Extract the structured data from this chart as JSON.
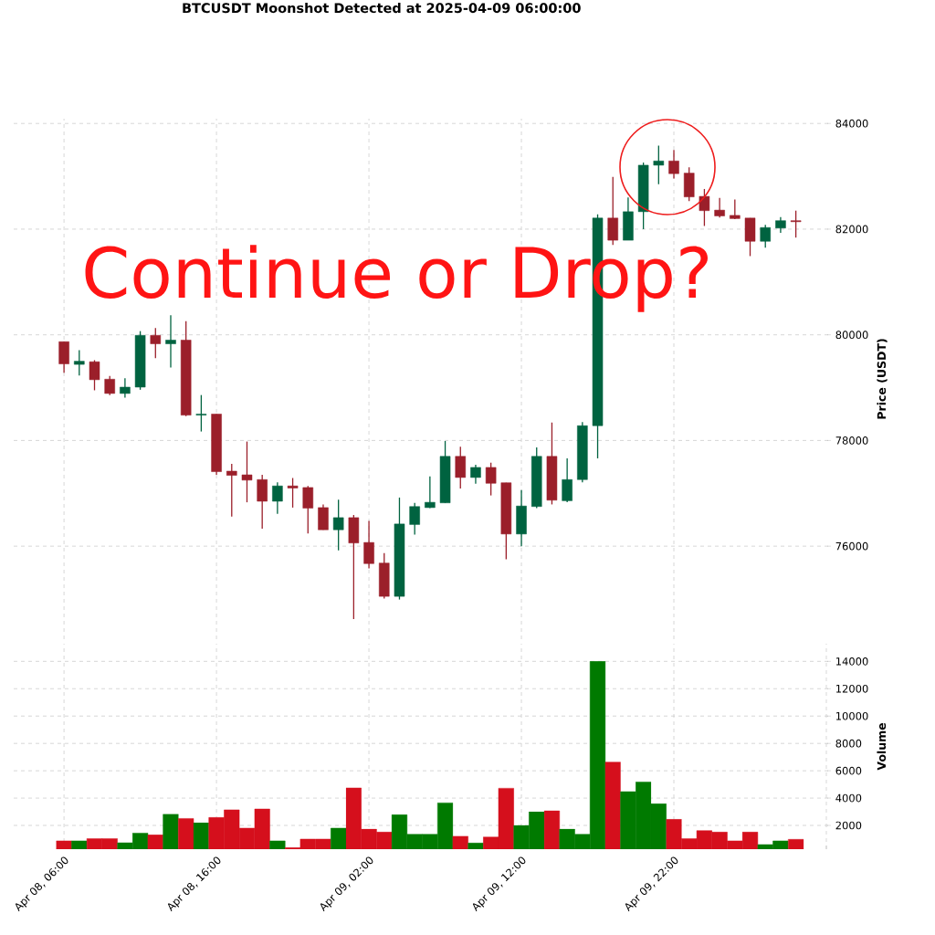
{
  "chart_data": [
    {
      "type": "candlestick",
      "title": "BTCUSDT Moonshot Detected at 2025-04-09 06:00:00",
      "ylabel": "Price (USDT)",
      "x": [
        "2025-04-08T06:00",
        "2025-04-08T07:00",
        "2025-04-08T08:00",
        "2025-04-08T09:00",
        "2025-04-08T10:00",
        "2025-04-08T11:00",
        "2025-04-08T12:00",
        "2025-04-08T13:00",
        "2025-04-08T14:00",
        "2025-04-08T15:00",
        "2025-04-08T16:00",
        "2025-04-08T17:00",
        "2025-04-08T18:00",
        "2025-04-08T19:00",
        "2025-04-08T20:00",
        "2025-04-08T21:00",
        "2025-04-08T22:00",
        "2025-04-08T23:00",
        "2025-04-09T00:00",
        "2025-04-09T01:00",
        "2025-04-09T02:00",
        "2025-04-09T03:00",
        "2025-04-09T04:00",
        "2025-04-09T05:00",
        "2025-04-09T06:00",
        "2025-04-09T07:00",
        "2025-04-09T08:00",
        "2025-04-09T09:00",
        "2025-04-09T10:00",
        "2025-04-09T11:00",
        "2025-04-09T12:00",
        "2025-04-09T13:00",
        "2025-04-09T14:00",
        "2025-04-09T15:00",
        "2025-04-09T16:00",
        "2025-04-09T17:00",
        "2025-04-09T18:00",
        "2025-04-09T19:00",
        "2025-04-09T20:00",
        "2025-04-09T21:00",
        "2025-04-09T22:00",
        "2025-04-09T23:00",
        "2025-04-10T00:00",
        "2025-04-10T01:00",
        "2025-04-10T02:00",
        "2025-04-10T03:00",
        "2025-04-10T04:00",
        "2025-04-10T05:00",
        "2025-04-10T06:00"
      ],
      "ohlc": [
        [
          79870,
          79870,
          79280,
          79450
        ],
        [
          79440,
          79710,
          79230,
          79500
        ],
        [
          79490,
          79520,
          78950,
          79150
        ],
        [
          79160,
          79220,
          78860,
          78890
        ],
        [
          78890,
          79180,
          78810,
          79010
        ],
        [
          79010,
          80070,
          78960,
          79990
        ],
        [
          79990,
          80130,
          79560,
          79830
        ],
        [
          79830,
          80370,
          79380,
          79900
        ],
        [
          79900,
          80260,
          78460,
          78480
        ],
        [
          78480,
          78860,
          78170,
          78500
        ],
        [
          78500,
          78500,
          77350,
          77410
        ],
        [
          77420,
          77560,
          76560,
          77340
        ],
        [
          77350,
          77980,
          76830,
          77250
        ],
        [
          77260,
          77350,
          76330,
          76850
        ],
        [
          76850,
          77210,
          76610,
          77140
        ],
        [
          77140,
          77290,
          76730,
          77100
        ],
        [
          77110,
          77140,
          76240,
          76720
        ],
        [
          76730,
          76790,
          76310,
          76310
        ],
        [
          76310,
          76880,
          75920,
          76540
        ],
        [
          76540,
          76590,
          74620,
          76060
        ],
        [
          76070,
          76480,
          75580,
          75670
        ],
        [
          75680,
          75870,
          75010,
          75050
        ],
        [
          75050,
          76920,
          74990,
          76420
        ],
        [
          76410,
          76820,
          76220,
          76750
        ],
        [
          76730,
          77320,
          76720,
          76830
        ],
        [
          76820,
          77990,
          76820,
          77700
        ],
        [
          77700,
          77880,
          77090,
          77300
        ],
        [
          77300,
          77540,
          77180,
          77490
        ],
        [
          77490,
          77580,
          76960,
          77190
        ],
        [
          77200,
          77200,
          75750,
          76230
        ],
        [
          76230,
          77060,
          76000,
          76760
        ],
        [
          76750,
          77870,
          76720,
          77700
        ],
        [
          77700,
          78340,
          76790,
          76870
        ],
        [
          76860,
          77660,
          76830,
          77260
        ],
        [
          77260,
          78350,
          77210,
          78280
        ],
        [
          78280,
          82280,
          77660,
          82210
        ],
        [
          82210,
          82990,
          81700,
          81790
        ],
        [
          81790,
          82600,
          81790,
          82330
        ],
        [
          82330,
          83260,
          82000,
          83210
        ],
        [
          83210,
          83580,
          82850,
          83290
        ],
        [
          83290,
          83500,
          82960,
          83050
        ],
        [
          83060,
          83170,
          82530,
          82610
        ],
        [
          82620,
          82760,
          82060,
          82350
        ],
        [
          82360,
          82590,
          82220,
          82250
        ],
        [
          82260,
          82560,
          82190,
          82200
        ],
        [
          82210,
          82210,
          81490,
          81770
        ],
        [
          81770,
          82080,
          81650,
          82030
        ],
        [
          82020,
          82230,
          81930,
          82160
        ],
        [
          82160,
          82350,
          81840,
          82140
        ]
      ],
      "colors": [
        "#9b1f2a",
        "#006340",
        "#9b1f2a",
        "#9b1f2a",
        "#006340",
        "#006340",
        "#9b1f2a",
        "#006340",
        "#9b1f2a",
        "#006340",
        "#9b1f2a",
        "#9b1f2a",
        "#9b1f2a",
        "#9b1f2a",
        "#006340",
        "#9b1f2a",
        "#9b1f2a",
        "#9b1f2a",
        "#006340",
        "#9b1f2a",
        "#9b1f2a",
        "#9b1f2a",
        "#006340",
        "#006340",
        "#006340",
        "#006340",
        "#9b1f2a",
        "#006340",
        "#9b1f2a",
        "#9b1f2a",
        "#006340",
        "#006340",
        "#9b1f2a",
        "#006340",
        "#006340",
        "#006340",
        "#9b1f2a",
        "#006340",
        "#006340",
        "#006340",
        "#9b1f2a",
        "#9b1f2a",
        "#9b1f2a",
        "#9b1f2a",
        "#9b1f2a",
        "#9b1f2a",
        "#006340",
        "#006340",
        "#9b1f2a"
      ],
      "xlim": [
        "2025-04-08T02:42",
        "2025-04-10T08:18"
      ],
      "xticks": [
        {
          "value": "2025-04-08T06:00",
          "label": null
        },
        {
          "value": "2025-04-08T16:00",
          "label": null
        },
        {
          "value": "2025-04-09T02:00",
          "label": null
        },
        {
          "value": "2025-04-09T12:00",
          "label": null
        },
        {
          "value": "2025-04-09T22:00",
          "label": null
        }
      ],
      "ylim": [
        74240,
        84090
      ],
      "yticks": [
        76000,
        78000,
        80000,
        82000,
        84000
      ],
      "grid": true,
      "tick_labels": "y",
      "annotations": [
        "Continue or Drop?"
      ]
    },
    {
      "type": "bar",
      "ylabel": "Volume",
      "x": [
        "2025-04-08T06:00",
        "2025-04-08T07:00",
        "2025-04-08T08:00",
        "2025-04-08T09:00",
        "2025-04-08T10:00",
        "2025-04-08T11:00",
        "2025-04-08T12:00",
        "2025-04-08T13:00",
        "2025-04-08T14:00",
        "2025-04-08T15:00",
        "2025-04-08T16:00",
        "2025-04-08T17:00",
        "2025-04-08T18:00",
        "2025-04-08T19:00",
        "2025-04-08T20:00",
        "2025-04-08T21:00",
        "2025-04-08T22:00",
        "2025-04-08T23:00",
        "2025-04-09T00:00",
        "2025-04-09T01:00",
        "2025-04-09T02:00",
        "2025-04-09T03:00",
        "2025-04-09T04:00",
        "2025-04-09T05:00",
        "2025-04-09T06:00",
        "2025-04-09T07:00",
        "2025-04-09T08:00",
        "2025-04-09T09:00",
        "2025-04-09T10:00",
        "2025-04-09T11:00",
        "2025-04-09T12:00",
        "2025-04-09T13:00",
        "2025-04-09T14:00",
        "2025-04-09T15:00",
        "2025-04-09T16:00",
        "2025-04-09T17:00",
        "2025-04-09T18:00",
        "2025-04-09T19:00",
        "2025-04-09T20:00",
        "2025-04-09T21:00",
        "2025-04-09T22:00",
        "2025-04-09T23:00",
        "2025-04-10T00:00",
        "2025-04-10T01:00",
        "2025-04-10T02:00",
        "2025-04-10T03:00",
        "2025-04-10T04:00",
        "2025-04-10T05:00",
        "2025-04-10T06:00"
      ],
      "values": [
        870,
        870,
        1040,
        1040,
        730,
        1440,
        1310,
        2820,
        2510,
        2200,
        2580,
        3140,
        1800,
        3200,
        870,
        380,
        1000,
        1000,
        1800,
        4740,
        1730,
        1510,
        2780,
        1350,
        1350,
        3650,
        1220,
        710,
        1150,
        4720,
        2000,
        3000,
        3070,
        1730,
        1350,
        14000,
        6630,
        4470,
        5180,
        3580,
        2450,
        1040,
        1620,
        1510,
        870,
        1510,
        600,
        870,
        980
      ],
      "colors": [
        "#d50f1c",
        "#007a00",
        "#d50f1c",
        "#d50f1c",
        "#007a00",
        "#007a00",
        "#d50f1c",
        "#007a00",
        "#d50f1c",
        "#007a00",
        "#d50f1c",
        "#d50f1c",
        "#d50f1c",
        "#d50f1c",
        "#007a00",
        "#d50f1c",
        "#d50f1c",
        "#d50f1c",
        "#007a00",
        "#d50f1c",
        "#d50f1c",
        "#d50f1c",
        "#007a00",
        "#007a00",
        "#007a00",
        "#007a00",
        "#d50f1c",
        "#007a00",
        "#d50f1c",
        "#d50f1c",
        "#007a00",
        "#007a00",
        "#d50f1c",
        "#007a00",
        "#007a00",
        "#007a00",
        "#d50f1c",
        "#007a00",
        "#007a00",
        "#007a00",
        "#d50f1c",
        "#d50f1c",
        "#d50f1c",
        "#d50f1c",
        "#d50f1c",
        "#d50f1c",
        "#007a00",
        "#007a00",
        "#d50f1c"
      ],
      "xlim": [
        "2025-04-08T02:42",
        "2025-04-10T08:18"
      ],
      "xticks": [
        {
          "value": "2025-04-08T06:00",
          "label": "Apr 08, 06:00"
        },
        {
          "value": "2025-04-08T16:00",
          "label": "Apr 08, 16:00"
        },
        {
          "value": "2025-04-09T02:00",
          "label": "Apr 09, 02:00"
        },
        {
          "value": "2025-04-09T12:00",
          "label": "Apr 09, 12:00"
        },
        {
          "value": "2025-04-09T22:00",
          "label": "Apr 09, 22:00"
        },
        {
          "value": "2025-04-10T08:00",
          "label": null
        }
      ],
      "ylim": [
        264,
        15290
      ],
      "yticks": [
        2000,
        4000,
        6000,
        8000,
        10000,
        12000,
        14000
      ],
      "grid": true
    }
  ]
}
